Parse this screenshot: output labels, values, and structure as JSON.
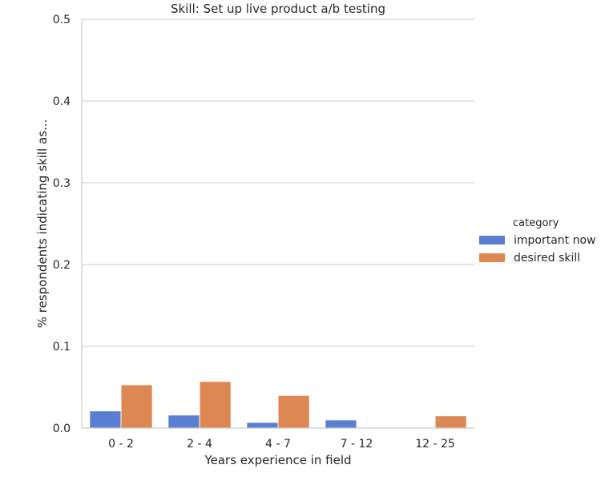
{
  "chart_data": {
    "type": "bar",
    "title": "Skill: Set up live product a/b testing",
    "xlabel": "Years experience in field",
    "ylabel": "% respondents indicating skill as...",
    "categories": [
      "0 - 2",
      "2 - 4",
      "4 - 7",
      "7 - 12",
      "12 - 25"
    ],
    "series": [
      {
        "name": "important now",
        "values": [
          0.021,
          0.016,
          0.007,
          0.01,
          0.0
        ]
      },
      {
        "name": "desired skill",
        "values": [
          0.053,
          0.057,
          0.04,
          0.0,
          0.015
        ]
      }
    ],
    "ylim": [
      0,
      0.5
    ],
    "yticks": [
      "0.0",
      "0.1",
      "0.2",
      "0.3",
      "0.4",
      "0.5"
    ],
    "grid": true,
    "legend": {
      "title": "category",
      "placement": "right"
    },
    "colors": {
      "important now": "#5a7fd1",
      "desired skill": "#dd8752",
      "grid": "#cccccc"
    }
  }
}
